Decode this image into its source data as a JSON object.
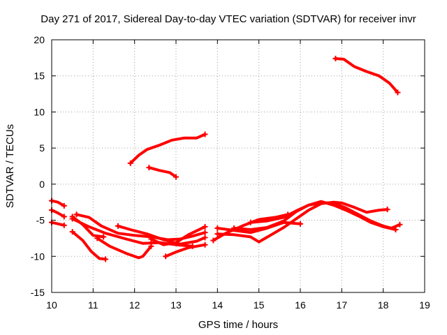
{
  "chart_data": {
    "type": "scatter",
    "title": "Day 271 of 2017, Sidereal Day-to-day VTEC variation (SDTVAR) for receiver invr",
    "xlabel": "GPS time / hours",
    "ylabel": "SDTVAR / TECUs",
    "xlim": [
      10,
      19
    ],
    "ylim": [
      -15,
      20
    ],
    "xticks": [
      10,
      11,
      12,
      13,
      14,
      15,
      16,
      17,
      18,
      19
    ],
    "yticks": [
      -15,
      -10,
      -5,
      0,
      5,
      10,
      15,
      20
    ],
    "grid": true,
    "color": "#ff0000",
    "series": [
      {
        "name": "arc-1",
        "x": [
          11.9,
          12.1,
          12.3,
          12.6,
          12.9,
          13.2,
          13.5,
          13.7
        ],
        "y": [
          2.9,
          4.0,
          4.8,
          5.4,
          6.1,
          6.4,
          6.4,
          6.9
        ]
      },
      {
        "name": "arc-2",
        "x": [
          12.35,
          12.6,
          12.85,
          13.0
        ],
        "y": [
          2.3,
          1.9,
          1.6,
          1.0
        ]
      },
      {
        "name": "arc-3",
        "x": [
          16.85,
          17.05,
          17.3,
          17.6,
          17.9,
          18.15,
          18.35
        ],
        "y": [
          17.4,
          17.3,
          16.3,
          15.6,
          15.0,
          14.0,
          12.7
        ]
      },
      {
        "name": "arc-4",
        "x": [
          10.0,
          10.15,
          10.3
        ],
        "y": [
          -2.3,
          -2.5,
          -3.0
        ]
      },
      {
        "name": "arc-5",
        "x": [
          10.0,
          10.15,
          10.3
        ],
        "y": [
          -3.6,
          -4.0,
          -4.5
        ]
      },
      {
        "name": "arc-6",
        "x": [
          10.0,
          10.15,
          10.3
        ],
        "y": [
          -5.3,
          -5.5,
          -5.7
        ]
      },
      {
        "name": "arc-7",
        "x": [
          10.5,
          10.75,
          11.0,
          11.25
        ],
        "y": [
          -4.5,
          -5.6,
          -7.1,
          -7.3
        ]
      },
      {
        "name": "arc-8",
        "x": [
          10.6,
          10.9,
          11.2,
          11.6,
          12.0,
          12.4,
          12.8,
          13.1,
          13.4,
          13.7
        ],
        "y": [
          -4.2,
          -4.6,
          -5.8,
          -6.8,
          -7.1,
          -7.3,
          -7.7,
          -7.6,
          -7.2,
          -6.7
        ]
      },
      {
        "name": "arc-9",
        "x": [
          10.5,
          10.9,
          11.3,
          11.8,
          12.2,
          12.6,
          13.0,
          13.4
        ],
        "y": [
          -4.8,
          -5.9,
          -6.8,
          -7.6,
          -8.2,
          -8.1,
          -8.4,
          -8.6
        ]
      },
      {
        "name": "arc-10",
        "x": [
          10.5,
          10.75,
          10.95,
          11.15,
          11.3
        ],
        "y": [
          -6.6,
          -7.8,
          -9.3,
          -10.3,
          -10.4
        ]
      },
      {
        "name": "arc-11",
        "x": [
          11.1,
          11.4,
          11.8,
          12.1,
          12.2,
          12.4
        ],
        "y": [
          -7.5,
          -8.6,
          -9.6,
          -10.2,
          -10.0,
          -8.6
        ]
      },
      {
        "name": "arc-12",
        "x": [
          11.6,
          11.9,
          12.3,
          12.7,
          13.1,
          13.5,
          13.7
        ],
        "y": [
          -5.8,
          -6.3,
          -6.9,
          -7.7,
          -8.3,
          -7.9,
          -7.4
        ]
      },
      {
        "name": "arc-13",
        "x": [
          12.4,
          12.7,
          13.0,
          13.3,
          13.7
        ],
        "y": [
          -7.6,
          -8.4,
          -8.1,
          -7.0,
          -5.9
        ]
      },
      {
        "name": "arc-14",
        "x": [
          12.75,
          13.0,
          13.3,
          13.5,
          13.7
        ],
        "y": [
          -10.0,
          -9.4,
          -8.8,
          -8.6,
          -8.4
        ]
      },
      {
        "name": "arc-15",
        "x": [
          13.9,
          14.2,
          14.6,
          15.0,
          15.4,
          15.7
        ],
        "y": [
          -7.8,
          -6.8,
          -5.8,
          -4.9,
          -4.6,
          -4.2
        ]
      },
      {
        "name": "arc-16",
        "x": [
          14.0,
          14.4,
          14.8,
          15.2,
          15.6,
          16.0
        ],
        "y": [
          -6.1,
          -6.4,
          -6.7,
          -6.1,
          -5.3,
          -5.5
        ]
      },
      {
        "name": "arc-17",
        "x": [
          14.0,
          14.4,
          14.8,
          15.0,
          15.3,
          15.6,
          15.9,
          16.2,
          16.5,
          16.8,
          17.0,
          17.3,
          17.6,
          17.9,
          18.1
        ],
        "y": [
          -6.9,
          -7.0,
          -7.3,
          -8.0,
          -7.0,
          -6.0,
          -4.8,
          -3.6,
          -2.7,
          -2.5,
          -2.6,
          -3.2,
          -3.9,
          -3.6,
          -3.5
        ]
      },
      {
        "name": "arc-18",
        "x": [
          14.4,
          14.8,
          15.2,
          15.6,
          15.9,
          16.2,
          16.5,
          16.8,
          17.1,
          17.4,
          17.7,
          18.0,
          18.2,
          18.4
        ],
        "y": [
          -6.1,
          -6.3,
          -6.0,
          -5.1,
          -3.8,
          -2.9,
          -2.6,
          -2.6,
          -3.3,
          -4.2,
          -5.1,
          -5.8,
          -6.1,
          -5.6
        ]
      },
      {
        "name": "arc-19",
        "x": [
          14.8,
          15.2,
          15.6,
          15.9,
          16.2,
          16.5,
          16.8,
          17.1,
          17.4,
          17.7,
          18.0,
          18.3
        ],
        "y": [
          -5.3,
          -5.1,
          -4.6,
          -3.7,
          -2.9,
          -2.4,
          -2.9,
          -3.6,
          -4.4,
          -5.3,
          -5.9,
          -6.3
        ]
      }
    ]
  }
}
